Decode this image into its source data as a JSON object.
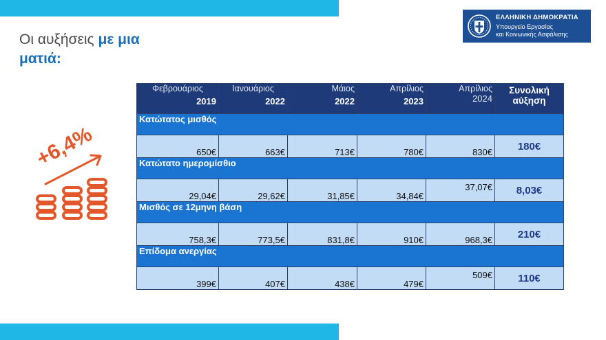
{
  "title": {
    "part1": "Οι αυξήσεις ",
    "part2": "με μια",
    "part3": "ματιά:"
  },
  "logo": {
    "line1": "ΕΛΛΗΝΙΚΗ ΔΗΜΟΚΡΑΤΙΑ",
    "line2": "Υπουργείο Εργασίας",
    "line3": "και Κοινωνικής Ασφάλισης"
  },
  "graphic": {
    "percent": "+6,4%"
  },
  "table": {
    "headers": [
      {
        "month": "Φεβρουάριος",
        "year": "2019"
      },
      {
        "month": "Ιανουάριος",
        "year": "2022"
      },
      {
        "month": "Μάιος",
        "year": "2022"
      },
      {
        "month": "Απρίλιος",
        "year": "2023"
      },
      {
        "month": "Απρίλιος",
        "year": "2024"
      }
    ],
    "total_header": {
      "line1": "Συνολική",
      "line2": "αύξηση"
    },
    "rows": [
      {
        "label": "Κατώτατος μισθός",
        "values": [
          "650€",
          "663€",
          "713€",
          "780€",
          "830€"
        ],
        "total": "180€"
      },
      {
        "label": "Κατώτατο ημερομίσθιο",
        "values": [
          "29,04€",
          "29,62€",
          "31,85€",
          "34,84€",
          "37,07€"
        ],
        "total": "8,03€"
      },
      {
        "label": "Μισθός σε 12μηνη βάση",
        "values": [
          "758,3€",
          "773,5€",
          "831,8€",
          "910€",
          "968,3€"
        ],
        "total": "210€"
      },
      {
        "label": "Επίδομα ανεργίας",
        "values": [
          "399€",
          "407€",
          "438€",
          "479€",
          "509€"
        ],
        "total": "110€"
      }
    ]
  },
  "colors": {
    "accent_cyan": "#1fb8e6",
    "header_navy": "#1e3a78",
    "section_blue": "#1a74d1",
    "cell_light": "#c3dcf6",
    "orange": "#e2582a"
  }
}
